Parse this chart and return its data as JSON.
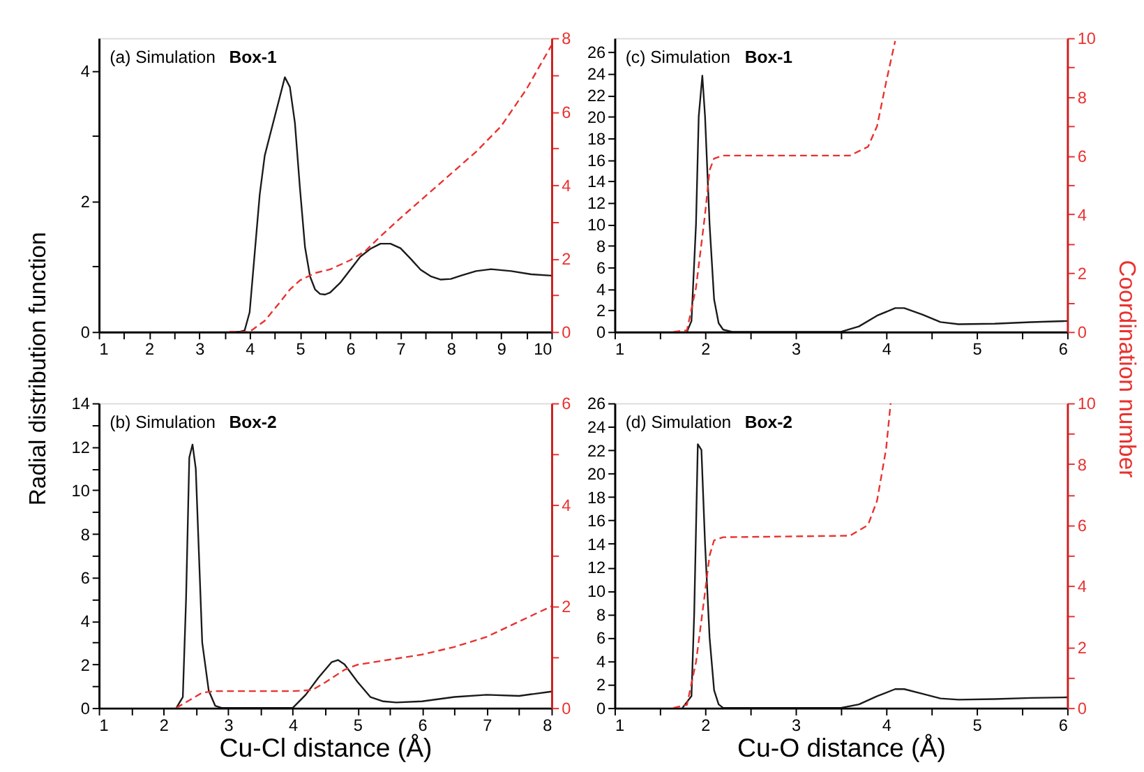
{
  "chart_data": [
    {
      "type": "line",
      "annotations": [
        "(a) Simulation",
        "Box-1"
      ],
      "ylabel": "Radial distribution function",
      "xlim": [
        1,
        10
      ],
      "xticks": [
        1,
        {
          "value": 1.5,
          "label": null
        },
        2,
        {
          "value": 2.5,
          "label": null
        },
        3,
        {
          "value": 3.5,
          "label": null
        },
        4,
        {
          "value": 4.5,
          "label": null
        },
        5,
        {
          "value": 5.5,
          "label": null
        },
        6,
        {
          "value": 6.5,
          "label": null
        },
        7,
        {
          "value": 7.5,
          "label": null
        },
        8,
        {
          "value": 8.5,
          "label": null
        },
        9,
        {
          "value": 9.5,
          "label": null
        },
        10
      ],
      "ylim": [
        0,
        4.5
      ],
      "yticks": [
        0,
        {
          "value": 1,
          "label": null
        },
        2,
        {
          "value": 3,
          "label": null
        },
        4
      ],
      "y2lim": [
        0,
        8
      ],
      "y2ticks": [
        0,
        {
          "value": 1,
          "label": null
        },
        2,
        {
          "value": 3,
          "label": null
        },
        4,
        {
          "value": 5,
          "label": null
        },
        6,
        {
          "value": 7,
          "label": null
        },
        8
      ],
      "grid": false,
      "series": [
        {
          "color": "#1a1a1a",
          "line_style": "solid",
          "x": [
            3.6,
            3.8,
            3.9,
            4.0,
            4.1,
            4.2,
            4.3,
            4.4,
            4.5,
            4.6,
            4.7,
            4.8,
            4.9,
            5.0,
            5.1,
            5.2,
            5.3,
            5.4,
            5.5,
            5.6,
            5.8,
            6.0,
            6.2,
            6.4,
            6.6,
            6.8,
            7.0,
            7.2,
            7.4,
            7.6,
            7.8,
            8.0,
            8.2,
            8.5,
            8.8,
            9.2,
            9.6,
            10
          ],
          "values": [
            0,
            0,
            0.02,
            0.3,
            1.2,
            2.1,
            2.7,
            3.0,
            3.3,
            3.6,
            3.9,
            3.75,
            3.2,
            2.2,
            1.3,
            0.85,
            0.65,
            0.58,
            0.57,
            0.6,
            0.75,
            0.95,
            1.15,
            1.27,
            1.35,
            1.35,
            1.28,
            1.12,
            0.95,
            0.85,
            0.8,
            0.81,
            0.86,
            0.93,
            0.96,
            0.93,
            0.88,
            0.86
          ]
        },
        {
          "color": "#e8312f",
          "line_style": "dashed",
          "axis": "y2",
          "x": [
            3.6,
            4.0,
            4.3,
            4.6,
            4.8,
            5.0,
            5.3,
            5.6,
            6.0,
            6.3,
            6.6,
            7.0,
            7.5,
            8.0,
            8.5,
            9.0,
            9.5,
            10
          ],
          "values": [
            0,
            0,
            0.3,
            0.8,
            1.15,
            1.4,
            1.6,
            1.7,
            1.95,
            2.2,
            2.6,
            3.1,
            3.7,
            4.3,
            4.9,
            5.6,
            6.6,
            7.8
          ]
        }
      ]
    },
    {
      "type": "line",
      "annotations": [
        "(c) Simulation",
        "Box-1"
      ],
      "y2label": "Coordination number",
      "xlim": [
        1,
        6
      ],
      "xticks": [
        1,
        {
          "value": 1.5,
          "label": null
        },
        2,
        {
          "value": 2.5,
          "label": null
        },
        3,
        {
          "value": 3.5,
          "label": null
        },
        4,
        {
          "value": 4.5,
          "label": null
        },
        5,
        {
          "value": 5.5,
          "label": null
        },
        6
      ],
      "ylim": [
        0,
        27.3
      ],
      "yticks": [
        0,
        2,
        4,
        6,
        8,
        10,
        12,
        14,
        16,
        18,
        20,
        22,
        24,
        26
      ],
      "y2lim": [
        0,
        10
      ],
      "y2ticks": [
        0,
        {
          "value": 1,
          "label": null
        },
        2,
        {
          "value": 3,
          "label": null
        },
        4,
        {
          "value": 5,
          "label": null
        },
        6,
        {
          "value": 7,
          "label": null
        },
        8,
        {
          "value": 9,
          "label": null
        },
        10
      ],
      "grid": false,
      "series": [
        {
          "color": "#1a1a1a",
          "line_style": "solid",
          "x": [
            1.8,
            1.85,
            1.9,
            1.93,
            1.97,
            2.0,
            2.05,
            2.1,
            2.15,
            2.2,
            2.3,
            3.5,
            3.7,
            3.9,
            4.1,
            4.2,
            4.4,
            4.6,
            4.8,
            5.2,
            5.6,
            6.0
          ],
          "values": [
            0,
            1,
            10,
            20,
            23.8,
            20,
            10,
            3,
            0.8,
            0.2,
            0,
            0,
            0.5,
            1.5,
            2.2,
            2.2,
            1.6,
            0.9,
            0.7,
            0.75,
            0.9,
            1.0
          ]
        },
        {
          "color": "#e8312f",
          "line_style": "dashed",
          "axis": "y2",
          "x": [
            1.65,
            1.8,
            1.9,
            2.0,
            2.05,
            2.1,
            2.2,
            3.6,
            3.8,
            3.9,
            4.0,
            4.1
          ],
          "values": [
            0,
            0.05,
            1.5,
            4.0,
            5.5,
            5.9,
            6.0,
            6.0,
            6.3,
            7.0,
            8.5,
            9.9
          ]
        }
      ]
    },
    {
      "type": "line",
      "annotations": [
        "(b) Simulation",
        "Box-2"
      ],
      "xlabel": "Cu-Cl distance (Å)",
      "xlim": [
        1,
        8
      ],
      "xticks": [
        1,
        {
          "value": 1.5,
          "label": null
        },
        2,
        {
          "value": 2.5,
          "label": null
        },
        3,
        {
          "value": 3.5,
          "label": null
        },
        4,
        {
          "value": 4.5,
          "label": null
        },
        5,
        {
          "value": 5.5,
          "label": null
        },
        6,
        {
          "value": 6.5,
          "label": null
        },
        7,
        {
          "value": 7.5,
          "label": null
        },
        8
      ],
      "ylim": [
        0,
        14
      ],
      "yticks": [
        0,
        {
          "value": 1,
          "label": null
        },
        2,
        {
          "value": 3,
          "label": null
        },
        4,
        {
          "value": 5,
          "label": null
        },
        6,
        {
          "value": 7,
          "label": null
        },
        8,
        {
          "value": 9,
          "label": null
        },
        10,
        {
          "value": 11,
          "label": null
        },
        12,
        {
          "value": 13,
          "label": null
        },
        14
      ],
      "y2lim": [
        0,
        6
      ],
      "y2ticks": [
        0,
        {
          "value": 1,
          "label": null
        },
        2,
        {
          "value": 3,
          "label": null
        },
        4,
        {
          "value": 5,
          "label": null
        },
        6
      ],
      "grid": false,
      "series": [
        {
          "color": "#1a1a1a",
          "line_style": "solid",
          "x": [
            2.2,
            2.3,
            2.35,
            2.4,
            2.45,
            2.5,
            2.55,
            2.6,
            2.7,
            2.8,
            2.9,
            4.0,
            4.2,
            4.4,
            4.6,
            4.7,
            4.8,
            5.0,
            5.2,
            5.4,
            5.6,
            6.0,
            6.5,
            7.0,
            7.5,
            8.0
          ],
          "values": [
            0,
            0.5,
            5,
            11.5,
            12.1,
            11.0,
            7,
            3,
            0.8,
            0.1,
            0,
            0,
            0.6,
            1.4,
            2.1,
            2.2,
            2.0,
            1.2,
            0.5,
            0.3,
            0.25,
            0.3,
            0.5,
            0.6,
            0.55,
            0.75
          ]
        },
        {
          "color": "#e8312f",
          "line_style": "dashed",
          "axis": "y2",
          "x": [
            2.2,
            2.4,
            2.6,
            2.8,
            4.0,
            4.3,
            4.5,
            4.8,
            5.0,
            5.5,
            6.0,
            6.5,
            7.0,
            7.5,
            8.0
          ],
          "values": [
            0,
            0.15,
            0.3,
            0.33,
            0.33,
            0.35,
            0.5,
            0.75,
            0.85,
            0.95,
            1.05,
            1.2,
            1.4,
            1.7,
            2.0
          ]
        }
      ]
    },
    {
      "type": "line",
      "annotations": [
        "(d) Simulation",
        "Box-2"
      ],
      "xlabel": "Cu-O distance (Å)",
      "xlim": [
        1,
        6
      ],
      "xticks": [
        1,
        {
          "value": 1.5,
          "label": null
        },
        2,
        {
          "value": 2.5,
          "label": null
        },
        3,
        {
          "value": 3.5,
          "label": null
        },
        4,
        {
          "value": 4.5,
          "label": null
        },
        5,
        {
          "value": 5.5,
          "label": null
        },
        6
      ],
      "ylim": [
        0,
        26
      ],
      "yticks": [
        0,
        2,
        4,
        6,
        8,
        10,
        12,
        14,
        16,
        18,
        20,
        22,
        24,
        26
      ],
      "y2lim": [
        0,
        10
      ],
      "y2ticks": [
        0,
        {
          "value": 1,
          "label": null
        },
        2,
        {
          "value": 3,
          "label": null
        },
        4,
        {
          "value": 5,
          "label": null
        },
        6,
        {
          "value": 7,
          "label": null
        },
        8,
        {
          "value": 9,
          "label": null
        },
        10
      ],
      "grid": false,
      "series": [
        {
          "color": "#1a1a1a",
          "line_style": "solid",
          "x": [
            1.75,
            1.85,
            1.88,
            1.92,
            1.96,
            2.0,
            2.05,
            2.1,
            2.15,
            2.2,
            3.5,
            3.7,
            3.9,
            4.1,
            4.2,
            4.4,
            4.6,
            4.8,
            5.2,
            5.6,
            6.0
          ],
          "values": [
            0,
            1,
            8,
            22.5,
            22,
            14,
            6,
            1.5,
            0.3,
            0,
            0,
            0.3,
            1.0,
            1.6,
            1.6,
            1.2,
            0.8,
            0.7,
            0.75,
            0.85,
            0.9
          ]
        },
        {
          "color": "#e8312f",
          "line_style": "dashed",
          "axis": "y2",
          "x": [
            1.65,
            1.8,
            1.9,
            2.0,
            2.05,
            2.1,
            2.2,
            3.6,
            3.8,
            3.9,
            4.0,
            4.05
          ],
          "values": [
            0,
            0.1,
            1.5,
            3.8,
            5.0,
            5.5,
            5.6,
            5.65,
            6.0,
            6.8,
            8.5,
            10
          ]
        }
      ]
    }
  ]
}
